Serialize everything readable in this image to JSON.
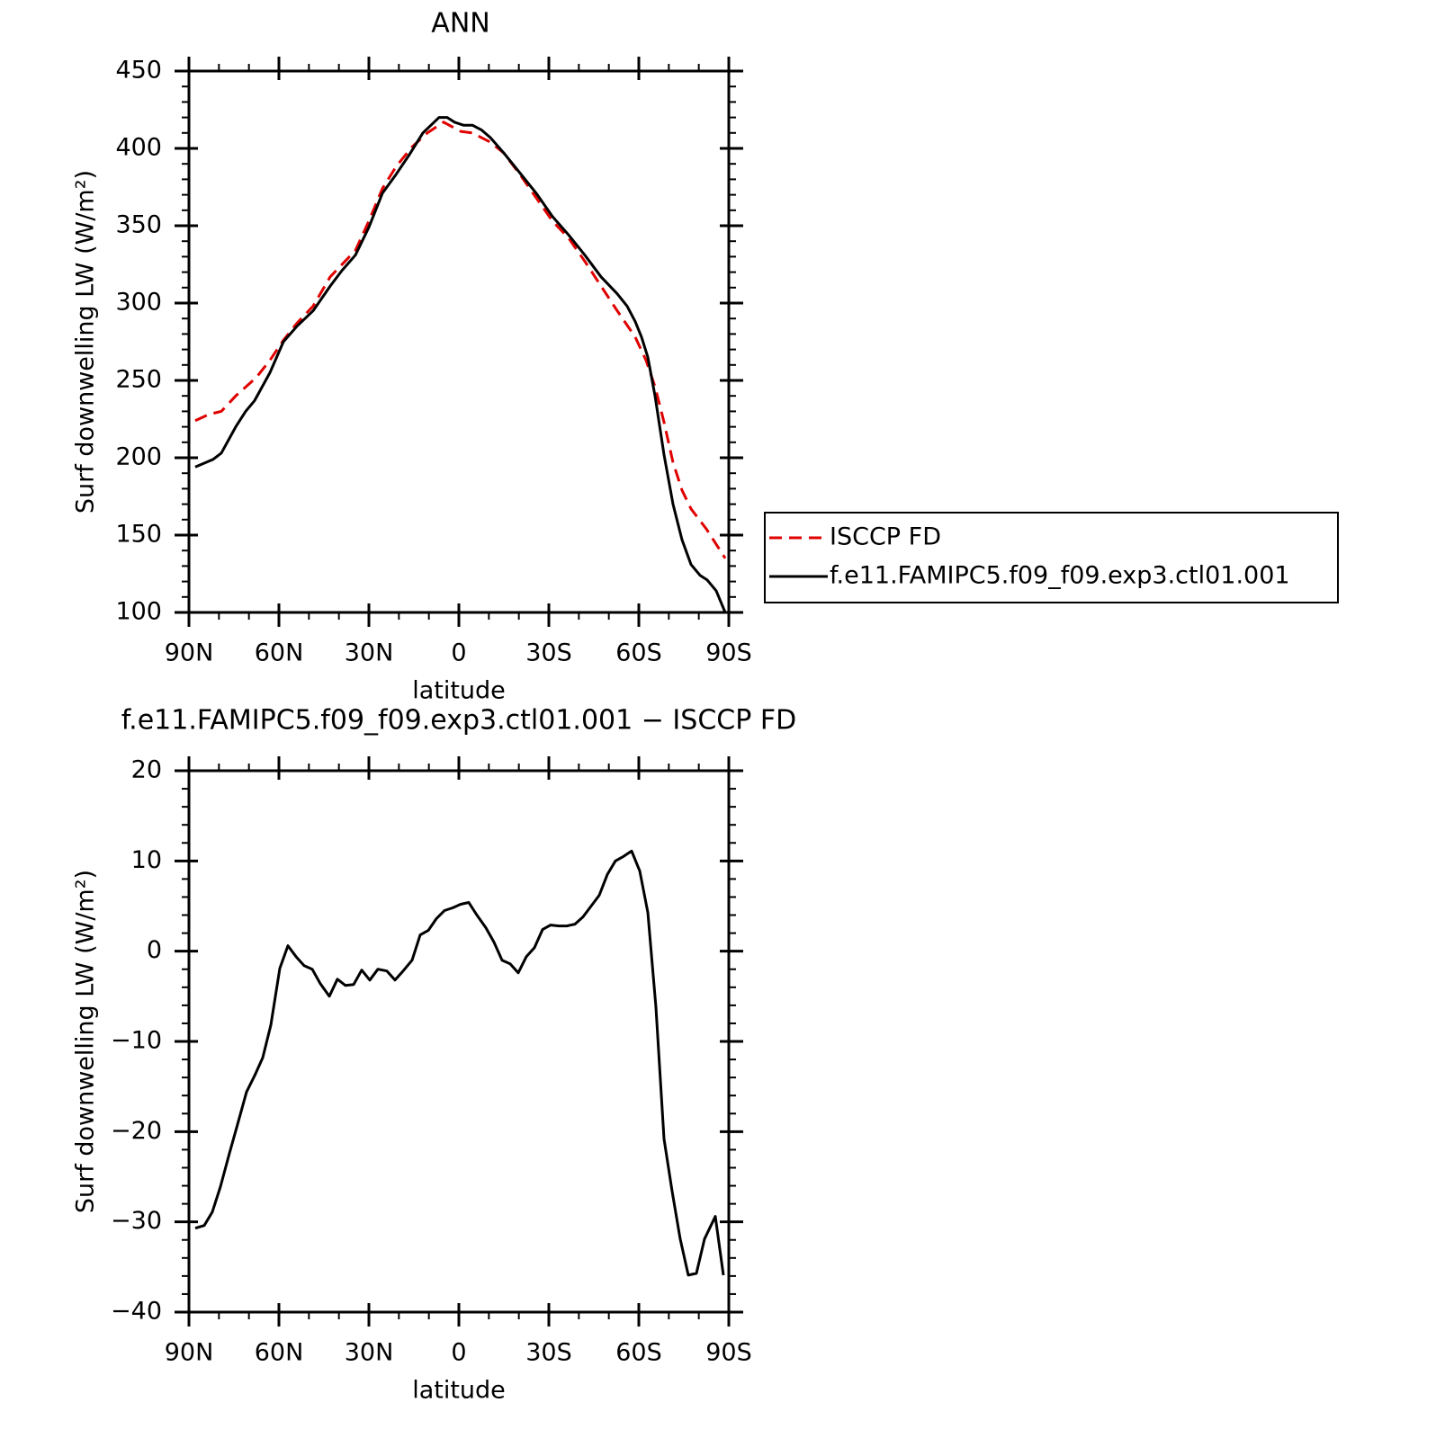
{
  "chart_data": [
    {
      "type": "line",
      "title": "ANN",
      "xlabel": "latitude",
      "ylabel": "Surf downwelling LW (W/m²)",
      "xlim": [
        90,
        -90
      ],
      "xticks": [
        {
          "value": 90,
          "label": "90N"
        },
        {
          "value": 60,
          "label": "60N"
        },
        {
          "value": 30,
          "label": "30N"
        },
        0,
        {
          "value": -30,
          "label": "30S"
        },
        {
          "value": -60,
          "label": "60S"
        },
        {
          "value": -90,
          "label": "90S"
        }
      ],
      "ylim": [
        100,
        450
      ],
      "yticks": [
        100,
        150,
        200,
        250,
        300,
        350,
        400,
        450
      ],
      "legend": "right",
      "series": [
        {
          "name": "ISCCP FD",
          "color": "#e00000",
          "dash": true,
          "x": [
            87.9,
            83.4,
            79.2,
            74.4,
            67.5,
            63,
            58.5,
            54,
            48.6,
            42.9,
            34.5,
            30,
            25.5,
            21,
            15.6,
            10.5,
            5.1,
            -0.6,
            -4.5,
            -10.5,
            -15,
            -20.4,
            -25.8,
            -31.2,
            -36.6,
            -42,
            -47.4,
            -52.8,
            -58.8,
            -62.4,
            -65.4,
            -68.4,
            -71.4,
            -74.4,
            -77.4,
            -82.5,
            -88.8
          ],
          "values": [
            224,
            228,
            230,
            240,
            252,
            263,
            276,
            287,
            298,
            317,
            334,
            353,
            374,
            388,
            401,
            410,
            417,
            411,
            410,
            404,
            397,
            383,
            368,
            353,
            342,
            327,
            311,
            295,
            278,
            263,
            246,
            223,
            197,
            179,
            167,
            154,
            135
          ]
        },
        {
          "name": "f.e11.FAMIPC5.f09_f09.exp3.ctl01.001",
          "color": "#000000",
          "dash": false,
          "x": [
            87.9,
            81.9,
            79.2,
            74.4,
            71.1,
            68.1,
            63,
            58.5,
            54,
            48.6,
            42.9,
            39,
            34.5,
            30,
            25.5,
            21,
            16.5,
            12,
            6.6,
            3.9,
            1.5,
            -1.5,
            -4.5,
            -7.5,
            -10.5,
            -15,
            -20.4,
            -25.8,
            -31.2,
            -36.6,
            -42,
            -47.4,
            -52.8,
            -56.1,
            -58.8,
            -60.9,
            -63,
            -65.4,
            -68.4,
            -71.4,
            -74.4,
            -77.4,
            -80.4,
            -82.8,
            -85.8,
            -88.8
          ],
          "values": [
            194,
            199,
            203,
            220,
            230,
            237,
            255,
            275,
            285,
            295,
            311,
            321,
            331,
            349,
            371,
            383,
            396,
            410,
            420,
            420,
            417,
            415,
            415,
            412,
            407,
            397,
            384,
            371,
            356,
            344,
            331,
            317,
            306,
            298,
            288,
            278,
            265,
            240,
            202,
            170,
            147,
            131,
            124,
            121,
            114,
            100
          ]
        }
      ]
    },
    {
      "type": "line",
      "title": "f.e11.FAMIPC5.f09_f09.exp3.ctl01.001 − ISCCP FD",
      "xlabel": "latitude",
      "ylabel": "Surf downwelling LW (W/m²)",
      "xlim": [
        90,
        -90
      ],
      "xticks": [
        {
          "value": 90,
          "label": "90N"
        },
        {
          "value": 60,
          "label": "60N"
        },
        {
          "value": 30,
          "label": "30N"
        },
        0,
        {
          "value": -30,
          "label": "30S"
        },
        {
          "value": -60,
          "label": "60S"
        },
        {
          "value": -90,
          "label": "90S"
        }
      ],
      "ylim": [
        -40,
        20
      ],
      "yticks": [
        {
          "value": -40,
          "label": "−40"
        },
        {
          "value": -30,
          "label": "−30"
        },
        {
          "value": -20,
          "label": "−20"
        },
        {
          "value": -10,
          "label": "−10"
        },
        0,
        10,
        20
      ],
      "series": [
        {
          "color": "#000000",
          "dash": false,
          "x": [
            87.9,
            84.9,
            82.2,
            79.5,
            76.5,
            73.8,
            70.8,
            68.1,
            65.4,
            62.7,
            59.7,
            57,
            54.3,
            51.6,
            48.9,
            46.2,
            43.2,
            40.5,
            37.8,
            35.1,
            32.4,
            29.7,
            27,
            24,
            21.3,
            18.6,
            15.6,
            12.9,
            10.2,
            7.5,
            4.8,
            2.1,
            -0.6,
            -3.3,
            -6,
            -9,
            -11.7,
            -14.4,
            -17.1,
            -19.8,
            -22.5,
            -25.2,
            -27.9,
            -30.6,
            -33.3,
            -36,
            -38.7,
            -41.4,
            -44.1,
            -46.8,
            -49.5,
            -52.2,
            -54.9,
            -57.6,
            -60.3,
            -63,
            -65.7,
            -68.4,
            -71.1,
            -73.8,
            -76.5,
            -79.2,
            -81.9,
            -85.5,
            -88.2
          ],
          "values": [
            -30.7,
            -30.4,
            -28.9,
            -26.1,
            -22.4,
            -19.2,
            -15.6,
            -13.8,
            -11.8,
            -8.2,
            -1.9,
            0.6,
            -0.6,
            -1.6,
            -2.0,
            -3.6,
            -5.0,
            -3.1,
            -3.8,
            -3.7,
            -2.1,
            -3.2,
            -2.0,
            -2.2,
            -3.2,
            -2.2,
            -1.0,
            1.8,
            2.3,
            3.6,
            4.5,
            4.8,
            5.2,
            5.4,
            4.0,
            2.6,
            1.0,
            -1.0,
            -1.4,
            -2.4,
            -0.6,
            0.4,
            2.4,
            2.9,
            2.8,
            2.8,
            3.0,
            3.8,
            5.0,
            6.2,
            8.5,
            10.0,
            10.5,
            11.1,
            8.9,
            4.3,
            -6.2,
            -20.8,
            -26.6,
            -31.9,
            -35.9,
            -35.7,
            -31.9,
            -29.4,
            -35.9
          ]
        }
      ]
    }
  ]
}
